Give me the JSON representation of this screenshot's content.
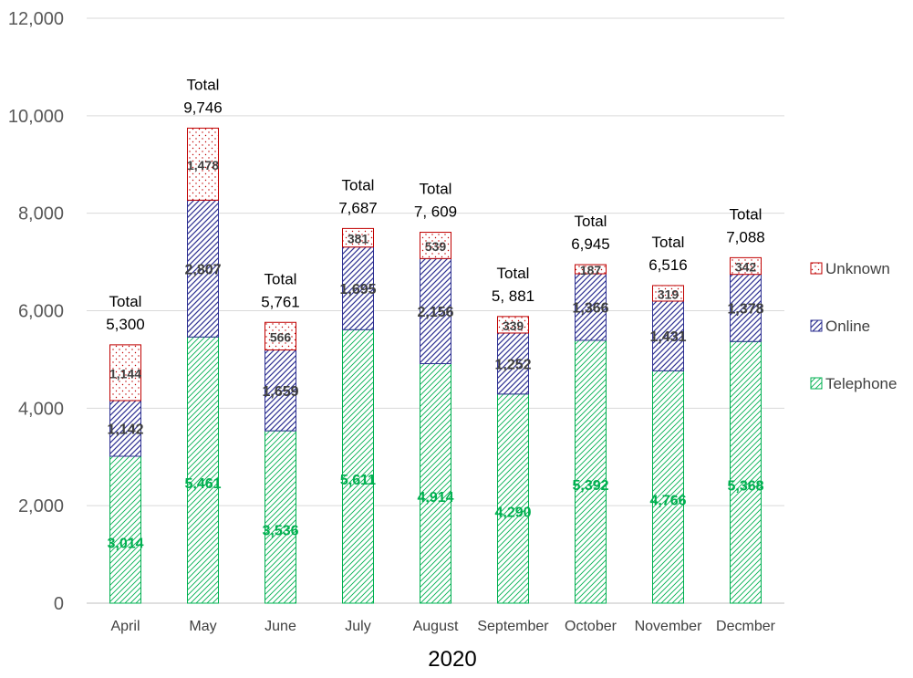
{
  "chart_data": {
    "type": "bar",
    "stacked": true,
    "categories": [
      "April",
      "May",
      "June",
      "July",
      "August",
      "September",
      "October",
      "November",
      "Decmber"
    ],
    "xlabel": "2020",
    "ylim": [
      0,
      12000
    ],
    "yticks": [
      "0",
      "2,000",
      "4,000",
      "6,000",
      "8,000",
      "10,000",
      "12,000"
    ],
    "grid": true,
    "legend_position": "right",
    "series": [
      {
        "name": "Telephone",
        "values": [
          3014,
          5461,
          3536,
          5611,
          4914,
          4290,
          5392,
          4766,
          5368
        ],
        "labels": [
          "3,014",
          "5,461",
          "3,536",
          "5,611",
          "4,914",
          "4,290",
          "5,392",
          "4,766",
          "5,368"
        ],
        "color": "#00B050"
      },
      {
        "name": "Online",
        "values": [
          1142,
          2807,
          1659,
          1695,
          2156,
          1252,
          1366,
          1431,
          1378
        ],
        "labels": [
          "1,142",
          "2,807",
          "1,659",
          "1,695",
          "2,156",
          "1,252",
          "1,366",
          "1,431",
          "1,378"
        ],
        "color": "#2E3192"
      },
      {
        "name": "Unknown",
        "values": [
          1144,
          1478,
          566,
          381,
          539,
          339,
          187,
          319,
          342
        ],
        "labels": [
          "1,144",
          "1,478",
          "566",
          "381",
          "539",
          "339",
          "187",
          "319",
          "342"
        ],
        "color": "#C00000"
      }
    ],
    "totals": {
      "label": "Total",
      "values": [
        5300,
        9746,
        5761,
        7687,
        7609,
        5881,
        6945,
        6516,
        7088
      ],
      "labels": [
        "5,300",
        "9,746",
        "5,761",
        "7,687",
        "7, 609",
        "5, 881",
        "6,945",
        "6,516",
        "7,088"
      ]
    }
  }
}
